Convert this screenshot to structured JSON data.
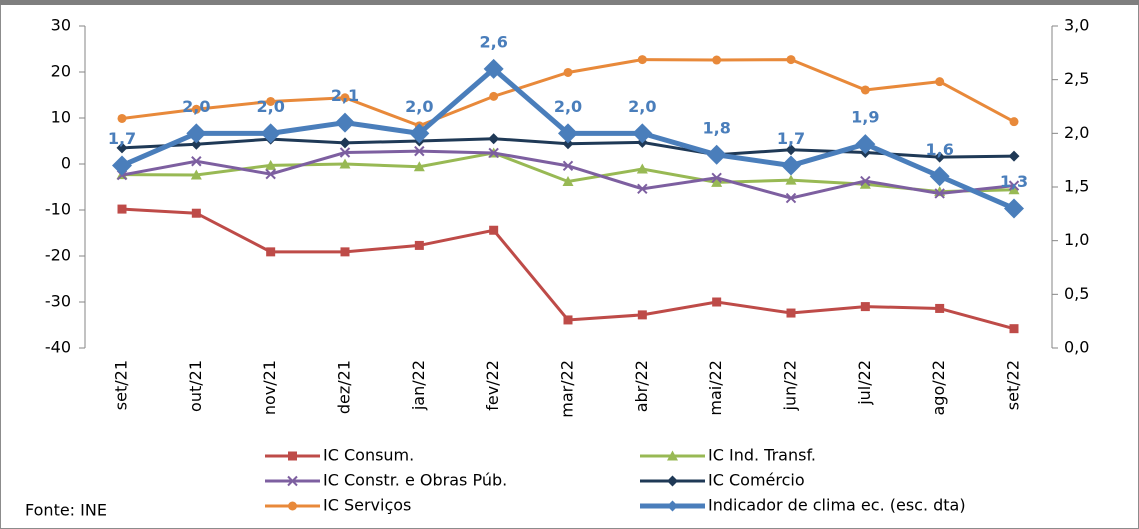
{
  "chart_data": {
    "type": "line",
    "categories": [
      "set/21",
      "out/21",
      "nov/21",
      "dez/21",
      "jan/22",
      "fev/22",
      "mar/22",
      "abr/22",
      "mai/22",
      "jun/22",
      "jul/22",
      "ago/22",
      "set/22"
    ],
    "series": [
      {
        "name": "IC Consum.",
        "color": "#be4b48",
        "marker": "square",
        "values": [
          -9.8,
          -10.7,
          -19.1,
          -19.1,
          -17.7,
          -14.4,
          -33.9,
          -32.8,
          -30.0,
          -32.4,
          -31.0,
          -31.4,
          -35.8
        ]
      },
      {
        "name": "IC Ind. Transf.",
        "color": "#98b954",
        "marker": "triangle",
        "values": [
          -2.3,
          -2.4,
          -0.3,
          0.0,
          -0.6,
          2.4,
          -3.8,
          -1.1,
          -4.0,
          -3.5,
          -4.4,
          -6.0,
          -5.6
        ]
      },
      {
        "name": "IC Constr. e Obras Púb.",
        "color": "#7d5fa0",
        "marker": "x",
        "values": [
          -2.4,
          0.6,
          -2.2,
          2.5,
          2.8,
          2.4,
          -0.4,
          -5.4,
          -3.0,
          -7.4,
          -3.7,
          -6.4,
          -4.7
        ]
      },
      {
        "name": "IC Comércio",
        "color": "#1f3956",
        "marker": "diamond",
        "values": [
          3.5,
          4.3,
          5.4,
          4.6,
          5.0,
          5.5,
          4.4,
          4.7,
          2.0,
          3.1,
          2.5,
          1.5,
          1.7
        ]
      },
      {
        "name": "IC Serviços",
        "color": "#e8893a",
        "marker": "circle",
        "values": [
          9.9,
          11.9,
          13.6,
          14.4,
          8.3,
          14.7,
          19.9,
          22.7,
          22.6,
          22.7,
          16.1,
          17.9,
          9.2
        ]
      },
      {
        "name": "Indicador de clima ec. (esc. dta)",
        "color": "#4a7ebb",
        "marker": "diamond",
        "axis": "y2",
        "values": [
          1.7,
          2.0,
          2.0,
          2.1,
          2.0,
          2.6,
          2.0,
          2.0,
          1.8,
          1.7,
          1.9,
          1.6,
          1.3
        ],
        "value_labels": [
          "1,7",
          "2,0",
          "2,0",
          "2,1",
          "2,0",
          "2,6",
          "2,0",
          "2,0",
          "1,8",
          "1,7",
          "1,9",
          "1,6",
          "1,3"
        ]
      }
    ],
    "ylim": [
      -40,
      30
    ],
    "yticks": [
      -40,
      -30,
      -20,
      -10,
      0,
      10,
      20,
      30
    ],
    "y2lim": [
      0,
      3
    ],
    "y2ticks": [
      {
        "value": 0,
        "label": "0,0"
      },
      {
        "value": 0.5,
        "label": "0,5"
      },
      {
        "value": 1,
        "label": "1,0"
      },
      {
        "value": 1.5,
        "label": "1,5"
      },
      {
        "value": 2,
        "label": "2,0"
      },
      {
        "value": 2.5,
        "label": "2,5"
      },
      {
        "value": 3,
        "label": "3,0"
      }
    ],
    "source": "Fonte:  INE"
  }
}
